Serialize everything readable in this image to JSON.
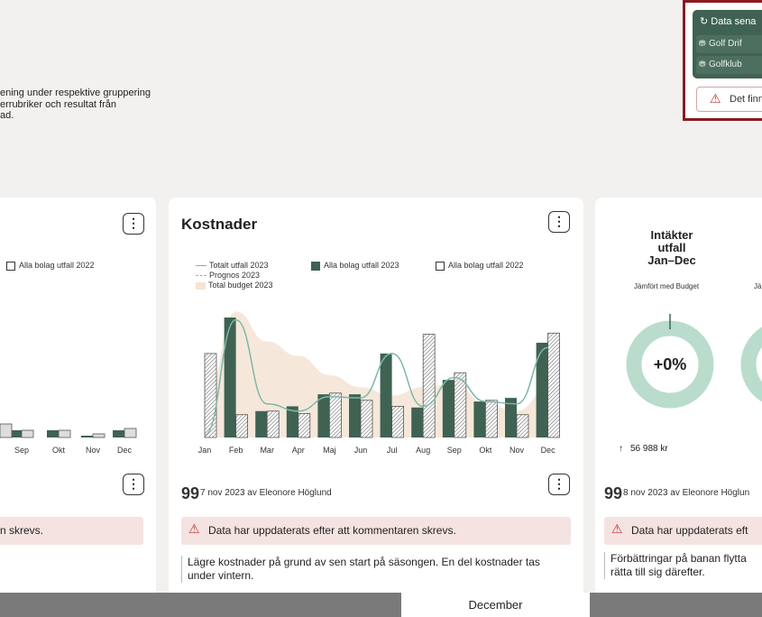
{
  "description": "ening under respektive gruppering\nerrubriker och resultat från\nad.",
  "status": {
    "title": "Data sena",
    "rows": [
      "Golf Drif",
      "Golfklub"
    ],
    "warning": "Det finn"
  },
  "left_card": {
    "legend_item": "Alla bolag utfall 2022",
    "x_labels": [
      "Sep",
      "Okt",
      "Nov",
      "Dec"
    ],
    "alert": "n skrevs."
  },
  "cost_card": {
    "title": "Kostnader",
    "legend": {
      "total": "Totalt utfall 2023",
      "prognos": "Prognos 2023",
      "budget": "Total budget 2023",
      "alla_2023": "Alla bolag utfall 2023",
      "alla_2022": "Alla bolag utfall 2022"
    },
    "comment_meta": "7 nov 2023 av Eleonore Höglund",
    "alert": "Data har uppdaterats efter att kommentaren skrevs.",
    "comment": "Lägre kostnader på grund av sen start på säsongen. En del kostnader tas\nunder vintern."
  },
  "right_card": {
    "title": "Intäkter\nutfall\nJan–Dec",
    "subtitle": "Jämfört med Budget",
    "subtitle2": "Jä",
    "percent": "+0%",
    "amount": "56 988 kr",
    "comment_meta": "8 nov 2023 av Eleonore Höglun",
    "alert": "Data har uppdaterats eft",
    "comment": "Förbättringar på banan flytta\nrätta till sig därefter."
  },
  "month_tab": "December",
  "colors": {
    "dark_green": "#3f6253",
    "light_green": "#7db7a8",
    "beige": "#f3e4d4",
    "alert_red": "#c13333"
  },
  "chart_data": [
    {
      "type": "bar",
      "title": "Kostnader",
      "categories": [
        "Jan",
        "Feb",
        "Mar",
        "Apr",
        "Maj",
        "Jun",
        "Jul",
        "Aug",
        "Sep",
        "Okt",
        "Nov",
        "Dec"
      ],
      "ylim": [
        0,
        100
      ],
      "series": [
        {
          "name": "Alla bolag utfall 2023",
          "kind": "bar-solid",
          "values": [
            0,
            100,
            22,
            26,
            36,
            36,
            70,
            25,
            48,
            30,
            33,
            79
          ]
        },
        {
          "name": "Alla bolag utfall 2022",
          "kind": "bar-hatched",
          "values": [
            70,
            19,
            22,
            20,
            37,
            31,
            26,
            86,
            54,
            31,
            19,
            87
          ]
        },
        {
          "name": "Totalt utfall 2023",
          "kind": "line",
          "values": [
            2,
            98,
            28,
            22,
            34,
            33,
            70,
            26,
            50,
            30,
            28,
            75
          ]
        },
        {
          "name": "Total budget 2023",
          "kind": "area",
          "values": [
            30,
            105,
            80,
            68,
            52,
            42,
            35,
            42,
            45,
            28,
            22,
            40
          ]
        }
      ]
    },
    {
      "type": "bar",
      "categories": [
        "Sep",
        "Okt",
        "Nov",
        "Dec"
      ],
      "series": [
        {
          "name": "Alla bolag utfall 2023",
          "kind": "bar-solid",
          "values": [
            8,
            8,
            2,
            8
          ]
        },
        {
          "name": "Alla bolag utfall 2022",
          "kind": "bar-hatched",
          "values": [
            8,
            8,
            4,
            10
          ]
        }
      ]
    },
    {
      "type": "pie",
      "title": "Intäkter\nutfall\nJan–Dec",
      "values": [
        100
      ],
      "labels": [
        "+0%"
      ]
    }
  ]
}
